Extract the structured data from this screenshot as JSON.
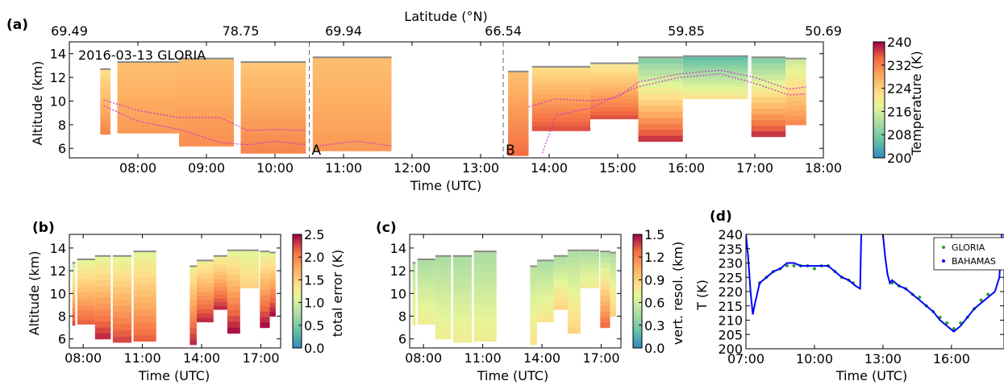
{
  "figure": {
    "panel_letters": [
      "(a)",
      "(b)",
      "(c)",
      "(d)"
    ]
  },
  "chart_data": [
    {
      "panel": "(a)",
      "type": "heatmap",
      "title": "2016-03-13 GLORIA",
      "xlabel": "Time (UTC)",
      "ylabel": "Altitude (km)",
      "top_axis_label": "Latitude (°N)",
      "top_ticks": [
        "69.49",
        "78.75",
        "69.94",
        "66.54",
        "59.85",
        "50.69"
      ],
      "top_tick_times": [
        7.0,
        9.5,
        11.0,
        13.33,
        16.0,
        18.0
      ],
      "x_ticks": [
        "08:00",
        "09:00",
        "10:00",
        "11:00",
        "12:00",
        "13:00",
        "14:00",
        "15:00",
        "16:00",
        "17:00",
        "18:00"
      ],
      "x_tick_values": [
        8,
        9,
        10,
        11,
        12,
        13,
        14,
        15,
        16,
        17,
        18
      ],
      "xlim": [
        7.0,
        18.0
      ],
      "y_ticks": [
        "6",
        "8",
        "10",
        "12",
        "14"
      ],
      "y_tick_values": [
        6,
        8,
        10,
        12,
        14
      ],
      "ylim": [
        5.2,
        15.0
      ],
      "markers": [
        {
          "label": "A",
          "time": 10.5
        },
        {
          "label": "B",
          "time": 13.33
        }
      ],
      "colorbar": {
        "label": "Temperature (K)",
        "ticks": [
          "200",
          "208",
          "216",
          "224",
          "232",
          "240"
        ],
        "min": 200,
        "max": 240,
        "cmap": "Spectral_r"
      },
      "segments": [
        {
          "t0": 7.45,
          "t1": 7.6,
          "top": 12.7,
          "bottom": 7.2,
          "temp_top": 222,
          "temp_bottom": 232
        },
        {
          "t0": 7.7,
          "t1": 8.6,
          "top": 13.3,
          "bottom": 7.3,
          "temp_top": 226,
          "temp_bottom": 230
        },
        {
          "t0": 8.6,
          "t1": 9.4,
          "top": 13.6,
          "bottom": 6.2,
          "temp_top": 226,
          "temp_bottom": 231
        },
        {
          "t0": 9.5,
          "t1": 10.45,
          "top": 13.3,
          "bottom": 5.6,
          "temp_top": 225,
          "temp_bottom": 232
        },
        {
          "t0": 10.55,
          "t1": 11.7,
          "top": 13.7,
          "bottom": 5.8,
          "temp_top": 226,
          "temp_bottom": 230
        },
        {
          "t0": 13.4,
          "t1": 13.7,
          "top": 12.5,
          "bottom": 5.4,
          "temp_top": 226,
          "temp_bottom": 234
        },
        {
          "t0": 13.75,
          "t1": 14.6,
          "top": 12.9,
          "bottom": 7.5,
          "temp_top": 222,
          "temp_bottom": 236
        },
        {
          "t0": 14.6,
          "t1": 15.3,
          "top": 13.2,
          "bottom": 8.5,
          "temp_top": 220,
          "temp_bottom": 236
        },
        {
          "t0": 15.3,
          "t1": 15.95,
          "top": 13.7,
          "bottom": 6.6,
          "temp_top": 208,
          "temp_bottom": 238
        },
        {
          "t0": 15.95,
          "t1": 16.9,
          "top": 13.8,
          "bottom": 10.2,
          "temp_top": 205,
          "temp_bottom": 222
        },
        {
          "t0": 16.95,
          "t1": 17.45,
          "top": 13.7,
          "bottom": 7.0,
          "temp_top": 208,
          "temp_bottom": 238
        },
        {
          "t0": 17.45,
          "t1": 17.75,
          "top": 13.6,
          "bottom": 8.0,
          "temp_top": 215,
          "temp_bottom": 232
        }
      ],
      "tropopause_lines": [
        {
          "points": [
            [
              7.5,
              10.1
            ],
            [
              8.0,
              9.2
            ],
            [
              8.6,
              8.6
            ],
            [
              9.2,
              8.6
            ],
            [
              9.6,
              7.5
            ],
            [
              10.0,
              7.6
            ],
            [
              10.45,
              7.5
            ]
          ]
        },
        {
          "points": [
            [
              7.5,
              9.6
            ],
            [
              8.0,
              8.3
            ],
            [
              8.6,
              7.6
            ],
            [
              9.2,
              6.5
            ],
            [
              9.6,
              6.3
            ],
            [
              10.0,
              6.6
            ],
            [
              10.45,
              6.3
            ]
          ]
        },
        {
          "points": [
            [
              10.6,
              6.2
            ],
            [
              11.2,
              6.6
            ],
            [
              11.7,
              6.2
            ]
          ]
        },
        {
          "points": [
            [
              13.7,
              9.5
            ],
            [
              14.1,
              10.2
            ],
            [
              14.6,
              10.0
            ],
            [
              15.0,
              10.3
            ],
            [
              15.3,
              11.6
            ],
            [
              15.9,
              12.3
            ],
            [
              16.5,
              12.6
            ],
            [
              17.0,
              12.0
            ],
            [
              17.5,
              11.0
            ],
            [
              17.75,
              11.2
            ]
          ]
        },
        {
          "points": [
            [
              13.9,
              5.6
            ],
            [
              14.1,
              8.8
            ],
            [
              14.6,
              9.4
            ],
            [
              15.0,
              10.5
            ],
            [
              15.3,
              11.2
            ],
            [
              15.9,
              12.0
            ],
            [
              16.5,
              12.3
            ],
            [
              17.0,
              11.5
            ],
            [
              17.5,
              10.5
            ],
            [
              17.75,
              10.6
            ]
          ]
        }
      ]
    },
    {
      "panel": "(b)",
      "type": "heatmap",
      "xlabel": "Time (UTC)",
      "ylabel": "Altitude (km)",
      "x_ticks": [
        "08:00",
        "11:00",
        "14:00",
        "17:00"
      ],
      "x_tick_values": [
        8,
        11,
        14,
        17
      ],
      "xlim": [
        7.3,
        18.0
      ],
      "y_ticks": [
        "6",
        "8",
        "10",
        "12",
        "14"
      ],
      "y_tick_values": [
        6,
        8,
        10,
        12,
        14
      ],
      "ylim": [
        5.2,
        15.2
      ],
      "colorbar": {
        "label": "total error (K)",
        "ticks": [
          "0.0",
          "0.5",
          "1.0",
          "1.5",
          "2.0",
          "2.5"
        ],
        "min": 0.0,
        "max": 2.5,
        "cmap": "Spectral_r"
      },
      "segments": [
        {
          "t0": 7.45,
          "t1": 7.6,
          "top": 12.7,
          "bottom": 7.2,
          "temp_top": 0.9,
          "temp_bottom": 2.3
        },
        {
          "t0": 7.7,
          "t1": 8.6,
          "top": 13.0,
          "bottom": 7.3,
          "temp_top": 1.1,
          "temp_bottom": 2.2
        },
        {
          "t0": 8.6,
          "t1": 9.4,
          "top": 13.3,
          "bottom": 6.0,
          "temp_top": 1.1,
          "temp_bottom": 2.4
        },
        {
          "t0": 9.5,
          "t1": 10.45,
          "top": 13.3,
          "bottom": 5.7,
          "temp_top": 1.1,
          "temp_bottom": 2.3
        },
        {
          "t0": 10.55,
          "t1": 11.7,
          "top": 13.7,
          "bottom": 5.8,
          "temp_top": 1.1,
          "temp_bottom": 2.2
        },
        {
          "t0": 13.4,
          "t1": 13.75,
          "top": 12.4,
          "bottom": 5.5,
          "temp_top": 1.2,
          "temp_bottom": 2.4
        },
        {
          "t0": 13.75,
          "t1": 14.6,
          "top": 12.9,
          "bottom": 7.5,
          "temp_top": 1.2,
          "temp_bottom": 2.4
        },
        {
          "t0": 14.6,
          "t1": 15.3,
          "top": 13.3,
          "bottom": 8.6,
          "temp_top": 1.2,
          "temp_bottom": 2.4
        },
        {
          "t0": 15.3,
          "t1": 15.95,
          "top": 13.8,
          "bottom": 6.5,
          "temp_top": 1.1,
          "temp_bottom": 2.5
        },
        {
          "t0": 15.95,
          "t1": 16.9,
          "top": 13.8,
          "bottom": 10.5,
          "temp_top": 1.1,
          "temp_bottom": 1.5
        },
        {
          "t0": 16.95,
          "t1": 17.45,
          "top": 13.7,
          "bottom": 7.0,
          "temp_top": 1.1,
          "temp_bottom": 2.5
        },
        {
          "t0": 17.45,
          "t1": 17.75,
          "top": 13.6,
          "bottom": 8.0,
          "temp_top": 1.1,
          "temp_bottom": 2.5
        }
      ]
    },
    {
      "panel": "(c)",
      "type": "heatmap",
      "xlabel": "Time (UTC)",
      "ylabel": "",
      "x_ticks": [
        "08:00",
        "11:00",
        "14:00",
        "17:00"
      ],
      "x_tick_values": [
        8,
        11,
        14,
        17
      ],
      "xlim": [
        7.3,
        18.0
      ],
      "y_ticks": [
        "6",
        "8",
        "10",
        "12",
        "14"
      ],
      "y_tick_values": [
        6,
        8,
        10,
        12,
        14
      ],
      "ylim": [
        5.2,
        15.2
      ],
      "colorbar": {
        "label": "vert. resol. (km)",
        "ticks": [
          "0.0",
          "0.3",
          "0.6",
          "0.9",
          "1.2",
          "1.5"
        ],
        "min": 0.0,
        "max": 1.5,
        "cmap": "Spectral_r"
      },
      "segments": [
        {
          "t0": 7.45,
          "t1": 7.6,
          "top": 12.7,
          "bottom": 7.2,
          "temp_top": 0.5,
          "temp_bottom": 0.75
        },
        {
          "t0": 7.7,
          "t1": 8.6,
          "top": 13.0,
          "bottom": 7.3,
          "temp_top": 0.45,
          "temp_bottom": 0.75
        },
        {
          "t0": 8.6,
          "t1": 9.4,
          "top": 13.3,
          "bottom": 6.0,
          "temp_top": 0.45,
          "temp_bottom": 0.75
        },
        {
          "t0": 9.5,
          "t1": 10.45,
          "top": 13.3,
          "bottom": 5.7,
          "temp_top": 0.45,
          "temp_bottom": 0.75
        },
        {
          "t0": 10.55,
          "t1": 11.7,
          "top": 13.7,
          "bottom": 5.8,
          "temp_top": 0.45,
          "temp_bottom": 0.75
        },
        {
          "t0": 13.4,
          "t1": 13.75,
          "top": 12.4,
          "bottom": 5.5,
          "temp_top": 0.5,
          "temp_bottom": 0.8
        },
        {
          "t0": 13.75,
          "t1": 14.6,
          "top": 12.9,
          "bottom": 7.5,
          "temp_top": 0.45,
          "temp_bottom": 0.8
        },
        {
          "t0": 14.6,
          "t1": 15.3,
          "top": 13.3,
          "bottom": 8.6,
          "temp_top": 0.45,
          "temp_bottom": 0.9
        },
        {
          "t0": 15.3,
          "t1": 15.95,
          "top": 13.8,
          "bottom": 6.5,
          "temp_top": 0.45,
          "temp_bottom": 0.9
        },
        {
          "t0": 15.95,
          "t1": 16.9,
          "top": 13.8,
          "bottom": 10.5,
          "temp_top": 0.45,
          "temp_bottom": 0.75
        },
        {
          "t0": 16.95,
          "t1": 17.45,
          "top": 13.7,
          "bottom": 7.0,
          "temp_top": 0.45,
          "temp_bottom": 1.3
        },
        {
          "t0": 17.45,
          "t1": 17.75,
          "top": 13.6,
          "bottom": 8.0,
          "temp_top": 0.45,
          "temp_bottom": 0.9
        }
      ]
    },
    {
      "panel": "(d)",
      "type": "line",
      "xlabel": "Time (UTC)",
      "ylabel": "T (K)",
      "x_ticks": [
        "07:00",
        "10:00",
        "13:00",
        "16:00"
      ],
      "x_tick_values": [
        7,
        10,
        13,
        16
      ],
      "xlim": [
        7.0,
        18.3
      ],
      "y_ticks": [
        "200",
        "205",
        "210",
        "215",
        "220",
        "225",
        "230",
        "235",
        "240"
      ],
      "y_tick_values": [
        200,
        205,
        210,
        215,
        220,
        225,
        230,
        235,
        240
      ],
      "ylim": [
        200,
        240
      ],
      "legend": {
        "position": "top-right"
      },
      "series": [
        {
          "name": "GLORIA",
          "style": "points",
          "color": "#2ca02c",
          "x": [
            7.6,
            7.9,
            8.2,
            8.5,
            8.8,
            9.1,
            9.4,
            9.7,
            10.0,
            10.3,
            10.6,
            10.9,
            11.2,
            11.5,
            11.7,
            13.4,
            13.7,
            14.0,
            14.3,
            14.6,
            14.9,
            15.2,
            15.5,
            15.8,
            16.1,
            16.4,
            16.7,
            17.0,
            17.3,
            17.6
          ],
          "y": [
            223,
            225,
            227,
            228,
            229,
            229,
            229,
            229,
            228,
            229,
            229,
            227,
            225,
            224,
            223,
            223,
            222,
            221,
            219,
            218,
            215,
            213,
            211,
            209,
            207,
            209,
            211,
            214,
            217,
            219
          ]
        },
        {
          "name": "BAHAMAS",
          "style": "line",
          "color": "#0000ff",
          "x": [
            7.0,
            7.1,
            7.2,
            7.3,
            7.4,
            7.6,
            7.9,
            8.2,
            8.5,
            8.8,
            9.1,
            9.4,
            9.7,
            10.0,
            10.3,
            10.6,
            10.9,
            11.2,
            11.5,
            11.8,
            12.0,
            12.05
          ],
          "y": [
            240,
            232,
            220,
            212,
            216,
            223,
            225,
            227,
            228,
            230,
            230,
            229,
            229,
            229,
            229,
            229,
            227,
            225,
            224,
            222,
            221,
            240
          ],
          "x2": [
            13.0,
            13.1,
            13.2,
            13.3,
            13.4,
            13.7,
            14.0,
            14.3,
            14.6,
            14.9,
            15.2,
            15.5,
            15.8,
            16.1,
            16.4,
            16.7,
            17.0,
            17.3,
            17.6,
            17.9,
            18.1,
            18.2
          ],
          "y2": [
            240,
            232,
            226,
            223,
            224,
            222,
            221,
            219,
            217,
            215,
            213,
            210,
            208,
            206,
            208,
            211,
            214,
            216,
            218,
            220,
            225,
            240
          ]
        }
      ]
    }
  ]
}
